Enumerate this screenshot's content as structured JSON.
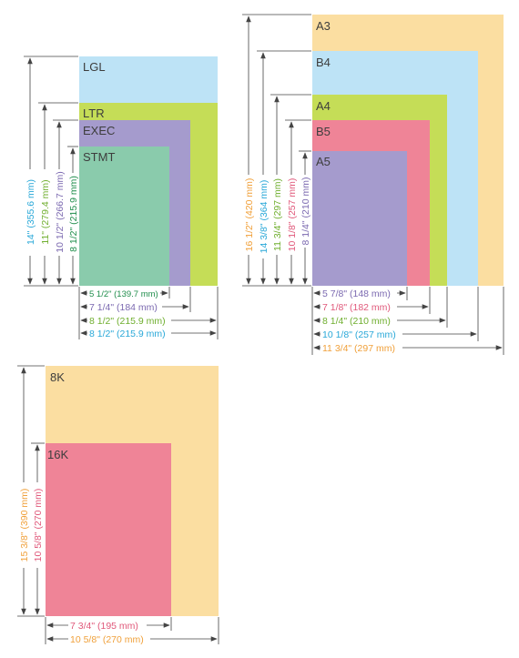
{
  "colors": {
    "lgl": "#bde3f6",
    "ltr": "#c5dd57",
    "exec": "#a59bcd",
    "stmt": "#8acbac",
    "a3": "#fbdea1",
    "b4": "#bde3f6",
    "a4": "#c5dd57",
    "b5": "#ef8497",
    "a5": "#a59bcd",
    "k8": "#fbdea1",
    "k16": "#ef8497",
    "label_text": "#3d3d3d",
    "arrow": "#444444",
    "dim_cyan": "#29a8d8",
    "dim_green": "#6fae2e",
    "dim_purple": "#7b69b0",
    "dim_darkgreen": "#1f8d4b",
    "dim_orange": "#f0a03a",
    "dim_pink": "#e0587a"
  },
  "groups": {
    "us": {
      "papers": [
        {
          "id": "lgl",
          "label": "LGL",
          "width_in": 8.5,
          "height_in": 14
        },
        {
          "id": "ltr",
          "label": "LTR",
          "width_in": 8.5,
          "height_in": 11
        },
        {
          "id": "exec",
          "label": "EXEC",
          "width_in": 7.25,
          "height_in": 10.5
        },
        {
          "id": "stmt",
          "label": "STMT",
          "width_in": 5.5,
          "height_in": 8.5
        }
      ],
      "heights": [
        {
          "text": "14\" (355.6 mm)",
          "color": "dim_cyan"
        },
        {
          "text": "11\" (279.4 mm)",
          "color": "dim_green"
        },
        {
          "text": "10 1/2\" (266.7 mm)",
          "color": "dim_purple"
        },
        {
          "text": "8 1/2\" (215.9 mm)",
          "color": "dim_darkgreen"
        }
      ],
      "widths": [
        {
          "text": "5 1/2\" (139.7 mm)",
          "color": "dim_darkgreen"
        },
        {
          "text": "7 1/4\" (184 mm)",
          "color": "dim_purple"
        },
        {
          "text": "8 1/2\" (215.9 mm)",
          "color": "dim_green"
        },
        {
          "text": "8 1/2\" (215.9 mm)",
          "color": "dim_cyan"
        }
      ]
    },
    "iso": {
      "papers": [
        {
          "id": "a3",
          "label": "A3",
          "width_mm": 297,
          "height_mm": 420
        },
        {
          "id": "b4",
          "label": "B4",
          "width_mm": 257,
          "height_mm": 364
        },
        {
          "id": "a4",
          "label": "A4",
          "width_mm": 210,
          "height_mm": 297
        },
        {
          "id": "b5",
          "label": "B5",
          "width_mm": 182,
          "height_mm": 257
        },
        {
          "id": "a5",
          "label": "A5",
          "width_mm": 148,
          "height_mm": 210
        }
      ],
      "heights": [
        {
          "text": "16 1/2\" (420 mm)",
          "color": "dim_orange"
        },
        {
          "text": "14 3/8\" (364  mm)",
          "color": "dim_cyan"
        },
        {
          "text": "11 3/4\" (297 mm)",
          "color": "dim_green"
        },
        {
          "text": "10 1/8\" (257 mm)",
          "color": "dim_pink"
        },
        {
          "text": "8 1/4\" (210 mm)",
          "color": "dim_purple"
        }
      ],
      "widths": [
        {
          "text": "5 7/8\" (148 mm)",
          "color": "dim_purple"
        },
        {
          "text": "7 1/8\" (182 mm)",
          "color": "dim_pink"
        },
        {
          "text": "8 1/4\" (210 mm)",
          "color": "dim_green"
        },
        {
          "text": "10 1/8\" (257 mm)",
          "color": "dim_cyan"
        },
        {
          "text": "11 3/4\" (297 mm)",
          "color": "dim_orange"
        }
      ]
    },
    "k": {
      "papers": [
        {
          "id": "k8",
          "label": "8K",
          "width_mm": 270,
          "height_mm": 390
        },
        {
          "id": "k16",
          "label": "16K",
          "width_mm": 195,
          "height_mm": 270
        }
      ],
      "heights": [
        {
          "text": "15 3/8\" (390 mm)",
          "color": "dim_orange"
        },
        {
          "text": "10 5/8\" (270 mm)",
          "color": "dim_pink"
        }
      ],
      "widths": [
        {
          "text": "7 3/4\" (195 mm)",
          "color": "dim_pink"
        },
        {
          "text": "10 5/8\" (270 mm)",
          "color": "dim_orange"
        }
      ]
    }
  }
}
